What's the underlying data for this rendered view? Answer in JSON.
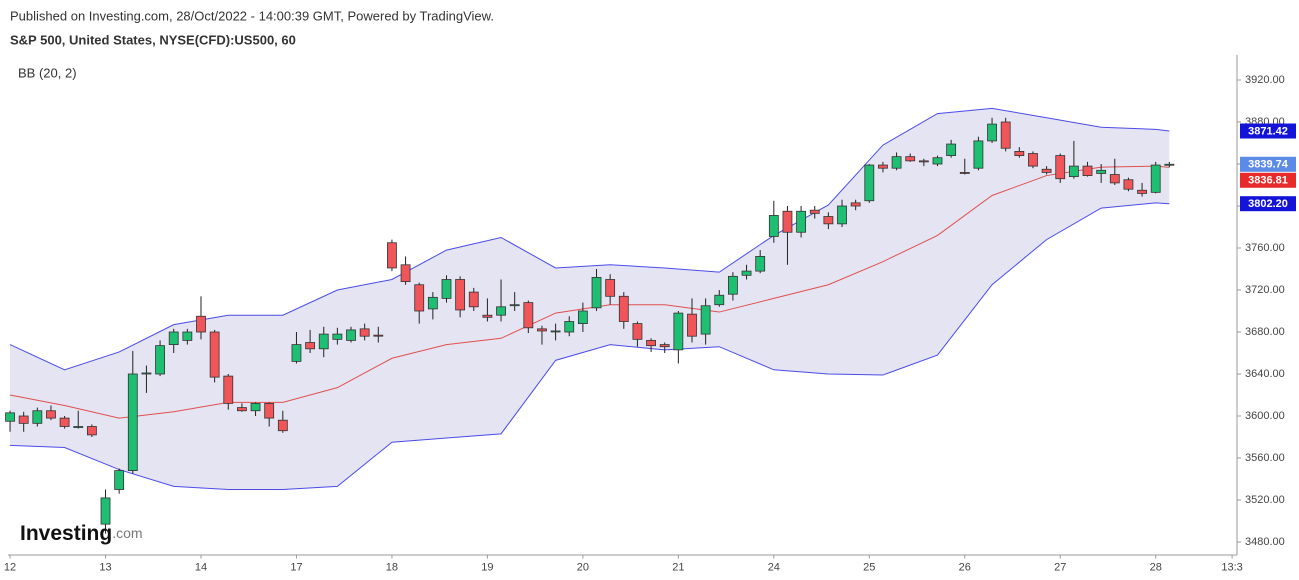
{
  "chart_data": {
    "type": "candlestick",
    "header": "Published on Investing.com, 28/Oct/2022 - 14:00:39 GMT, Powered by TradingView.",
    "title": "S&P 500, United States, NYSE(CFD):US500, 60",
    "indicator": "BB (20, 2)",
    "logo": {
      "name": "Investing",
      "suffix": ".com"
    },
    "up_color": "#1fbf73",
    "down_color": "#f0555a",
    "band_fill": "#e4e4f2",
    "xlim": [
      -0.15,
      89.96
    ],
    "xticks": [
      {
        "value": 0,
        "label": "12"
      },
      {
        "value": 7,
        "label": "13"
      },
      {
        "value": 14,
        "label": "14"
      },
      {
        "value": 21,
        "label": "17"
      },
      {
        "value": 28,
        "label": "18"
      },
      {
        "value": 35,
        "label": "19"
      },
      {
        "value": 42,
        "label": "20"
      },
      {
        "value": 49,
        "label": "21"
      },
      {
        "value": 56,
        "label": "24"
      },
      {
        "value": 63,
        "label": "25"
      },
      {
        "value": 70,
        "label": "26"
      },
      {
        "value": 77,
        "label": "27"
      },
      {
        "value": 84,
        "label": "28"
      },
      {
        "value": 89.6,
        "label": "13:3"
      }
    ],
    "ylim": [
      3468,
      3944
    ],
    "yticks": [
      {
        "value": 3480,
        "label": "3480.00"
      },
      {
        "value": 3520,
        "label": "3520.00"
      },
      {
        "value": 3560,
        "label": "3560.00"
      },
      {
        "value": 3600,
        "label": "3600.00"
      },
      {
        "value": 3640,
        "label": "3640.00"
      },
      {
        "value": 3680,
        "label": "3680.00"
      },
      {
        "value": 3720,
        "label": "3720.00"
      },
      {
        "value": 3760,
        "label": "3760.00"
      },
      {
        "value": 3800,
        "label": "3800.00"
      },
      {
        "value": 3840,
        "label": "3840.00"
      },
      {
        "value": 3880,
        "label": "3880.00"
      },
      {
        "value": 3920,
        "label": "3920.00"
      }
    ],
    "candles": {
      "x": [
        0,
        1,
        2,
        3,
        4,
        5,
        6,
        7,
        8,
        9,
        10,
        11,
        12,
        13,
        14,
        15,
        16,
        17,
        18,
        19,
        20,
        21,
        22,
        23,
        24,
        25,
        26,
        27,
        28,
        29,
        30,
        31,
        32,
        33,
        34,
        35,
        36,
        37,
        38,
        39,
        40,
        41,
        42,
        43,
        44,
        45,
        46,
        47,
        48,
        49,
        50,
        51,
        52,
        53,
        54,
        55,
        56,
        57,
        58,
        59,
        60,
        61,
        62,
        63,
        64,
        65,
        66,
        67,
        68,
        69,
        70,
        71,
        72,
        73,
        74,
        75,
        76,
        77,
        78,
        79,
        80,
        81,
        82,
        83,
        84,
        85
      ],
      "open": [
        3595,
        3600,
        3593,
        3605,
        3598,
        3590,
        3590,
        3497,
        3530,
        3548,
        3640,
        3640,
        3668,
        3672,
        3695,
        3680,
        3638,
        3608,
        3605,
        3612,
        3596,
        3652,
        3670,
        3664,
        3673,
        3672,
        3683,
        3677,
        3765,
        3744,
        3725,
        3702,
        3712,
        3730,
        3718,
        3696,
        3696,
        3706,
        3708,
        3683,
        3681,
        3680,
        3688,
        3703,
        3730,
        3714,
        3688,
        3672,
        3668,
        3663,
        3697,
        3678,
        3706,
        3716,
        3734,
        3738,
        3771,
        3795,
        3775,
        3796,
        3790,
        3783,
        3803,
        3805,
        3839,
        3836,
        3847,
        3843,
        3840,
        3848,
        3832,
        3836,
        3862,
        3880,
        3852,
        3850,
        3835,
        3848,
        3828,
        3838,
        3831,
        3830,
        3825,
        3815,
        3813,
        3839
      ],
      "high": [
        3605,
        3604,
        3608,
        3610,
        3600,
        3605,
        3592,
        3530,
        3550,
        3662,
        3648,
        3672,
        3683,
        3683,
        3714,
        3682,
        3640,
        3612,
        3613,
        3613,
        3605,
        3680,
        3682,
        3685,
        3684,
        3685,
        3688,
        3685,
        3768,
        3752,
        3727,
        3718,
        3734,
        3733,
        3722,
        3712,
        3730,
        3718,
        3710,
        3686,
        3688,
        3695,
        3708,
        3740,
        3735,
        3718,
        3690,
        3674,
        3670,
        3700,
        3712,
        3712,
        3720,
        3737,
        3744,
        3758,
        3805,
        3800,
        3800,
        3800,
        3794,
        3806,
        3806,
        3840,
        3842,
        3851,
        3850,
        3845,
        3848,
        3863,
        3845,
        3866,
        3884,
        3884,
        3856,
        3852,
        3838,
        3850,
        3862,
        3842,
        3840,
        3845,
        3827,
        3822,
        3842,
        3842
      ],
      "low": [
        3585,
        3585,
        3590,
        3596,
        3588,
        3588,
        3580,
        3488,
        3526,
        3545,
        3622,
        3638,
        3660,
        3668,
        3673,
        3632,
        3606,
        3604,
        3600,
        3590,
        3584,
        3650,
        3660,
        3656,
        3668,
        3670,
        3672,
        3670,
        3738,
        3725,
        3688,
        3692,
        3708,
        3694,
        3700,
        3690,
        3690,
        3700,
        3679,
        3668,
        3672,
        3676,
        3680,
        3700,
        3706,
        3683,
        3666,
        3661,
        3660,
        3650,
        3670,
        3668,
        3704,
        3710,
        3730,
        3736,
        3765,
        3744,
        3770,
        3788,
        3778,
        3780,
        3796,
        3803,
        3832,
        3834,
        3842,
        3838,
        3838,
        3846,
        3830,
        3834,
        3860,
        3852,
        3846,
        3836,
        3830,
        3822,
        3826,
        3828,
        3822,
        3820,
        3814,
        3809,
        3812,
        3837
      ],
      "close": [
        3603,
        3593,
        3605,
        3598,
        3590,
        3590,
        3582,
        3522,
        3548,
        3640,
        3641,
        3667,
        3680,
        3680,
        3680,
        3637,
        3612,
        3605,
        3612,
        3598,
        3586,
        3668,
        3664,
        3678,
        3678,
        3682,
        3676,
        3676,
        3741,
        3728,
        3700,
        3713,
        3730,
        3701,
        3704,
        3694,
        3704,
        3706,
        3684,
        3681,
        3681,
        3690,
        3700,
        3732,
        3714,
        3690,
        3673,
        3667,
        3666,
        3698,
        3676,
        3705,
        3715,
        3733,
        3738,
        3752,
        3791,
        3775,
        3795,
        3793,
        3783,
        3800,
        3800,
        3839,
        3836,
        3847,
        3843,
        3842,
        3846,
        3859,
        3831,
        3862,
        3878,
        3855,
        3848,
        3838,
        3832,
        3826,
        3838,
        3829,
        3834,
        3822,
        3816,
        3812,
        3839,
        3839.74
      ]
    },
    "bands": {
      "x": [
        0,
        4,
        8,
        12,
        16,
        20,
        24,
        28,
        32,
        36,
        40,
        44,
        48,
        52,
        56,
        60,
        64,
        68,
        72,
        76,
        80,
        84,
        85
      ],
      "upper": {
        "color": "#4b4be8",
        "values": [
          3668,
          3644,
          3661,
          3687,
          3696,
          3696,
          3720,
          3730,
          3758,
          3770,
          3741,
          3744,
          3741,
          3737,
          3772,
          3801,
          3858,
          3888,
          3893,
          3884,
          3875,
          3873,
          3871.42
        ]
      },
      "middle": {
        "color": "#e0504f",
        "values": [
          3620,
          3610,
          3598,
          3604,
          3613,
          3613,
          3627,
          3655,
          3668,
          3674,
          3698,
          3706,
          3706,
          3699,
          3712,
          3725,
          3747,
          3772,
          3810,
          3829,
          3837,
          3838,
          3836.81
        ]
      },
      "lower": {
        "color": "#4b4be8",
        "values": [
          3572,
          3570,
          3549,
          3533,
          3530,
          3530,
          3533,
          3575,
          3579,
          3583,
          3653,
          3668,
          3663,
          3666,
          3644,
          3640,
          3639,
          3658,
          3725,
          3768,
          3798,
          3803,
          3802.2
        ]
      }
    },
    "price_tags": [
      {
        "value": 3871.42,
        "color": "#1414d8"
      },
      {
        "value": 3839.74,
        "color": "#5b8be6"
      },
      {
        "value": 3836.81,
        "color": "#e82a2a"
      },
      {
        "value": 3802.2,
        "label": "3802.20",
        "color": "#1414d8"
      }
    ]
  }
}
